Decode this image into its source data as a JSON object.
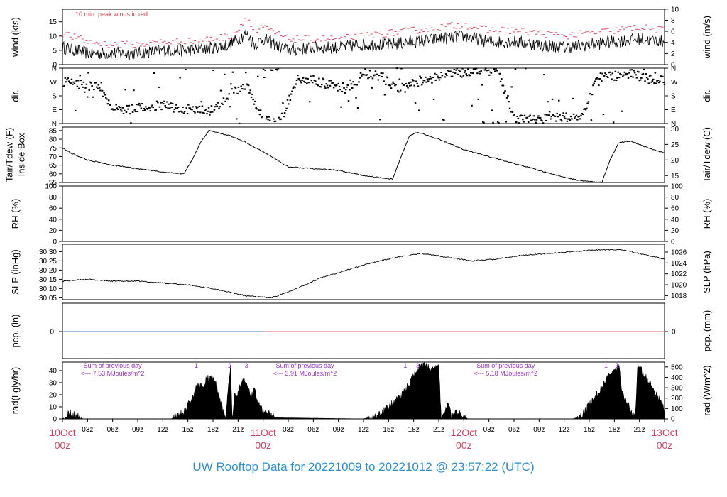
{
  "footer": {
    "title": "UW Rooftop Data for 20221009  to  20221012 @ 23:57:22  (UTC)"
  },
  "colors": {
    "ink": "#000000",
    "gust": "#e0445e",
    "date_label": "#d64060",
    "annotation": "#9932cc",
    "precip_blue": "#4a7fc0",
    "precip_red": "#e06a7a",
    "footer": "#2b8fd6"
  },
  "chart_data": [
    {
      "id": "wind",
      "type": "line",
      "ylabel_left": "wind (kts)",
      "ylabel_right": "wind (m/s)",
      "left_ticks": [
        0,
        5,
        10,
        15
      ],
      "right_ticks": [
        0,
        2,
        4,
        6,
        8,
        10
      ],
      "ylim": [
        0,
        19.4
      ],
      "annotation": "10 min. peak winds in red",
      "x_hours": [
        0,
        3,
        6,
        9,
        12,
        15,
        18,
        20,
        21,
        22,
        23,
        24,
        27,
        30,
        33,
        36,
        39,
        42,
        45,
        48,
        51,
        54,
        57,
        60,
        63,
        66,
        69,
        72
      ],
      "series": [
        {
          "name": "10 min. peak winds in red",
          "values": [
            11,
            8,
            7,
            7,
            8,
            8,
            9,
            10,
            12,
            17,
            11,
            13,
            9,
            9,
            9,
            10,
            11,
            12,
            13,
            14,
            12,
            12,
            11,
            10,
            11,
            12,
            13,
            12
          ]
        },
        {
          "values": [
            6,
            4,
            4,
            4,
            5,
            5,
            6,
            7,
            9,
            11,
            7,
            9,
            5,
            6,
            6,
            7,
            7,
            8,
            9,
            10,
            8,
            8,
            7,
            6,
            7,
            8,
            9,
            8
          ]
        }
      ]
    },
    {
      "id": "direction",
      "type": "scatter",
      "ylabel_left": "dir.",
      "ylabel_right": "dir.",
      "left_ticks": [
        "N",
        "E",
        "S",
        "W",
        "N"
      ],
      "right_ticks": [
        "N",
        "E",
        "S",
        "W",
        "N"
      ],
      "x_hours": [
        0,
        2,
        4,
        6,
        8,
        10,
        12,
        14,
        16,
        18,
        20,
        22,
        24,
        26,
        28,
        30,
        32,
        34,
        36,
        38,
        40,
        42,
        44,
        46,
        48,
        50,
        52,
        54,
        56,
        58,
        60,
        62,
        64,
        66,
        68,
        70,
        72
      ],
      "values_deg": [
        270,
        255,
        240,
        100,
        90,
        110,
        120,
        95,
        90,
        85,
        200,
        240,
        10,
        20,
        300,
        280,
        250,
        220,
        330,
        300,
        230,
        260,
        290,
        320,
        335,
        340,
        345,
        20,
        30,
        30,
        40,
        50,
        300,
        310,
        320,
        290,
        280
      ]
    },
    {
      "id": "temperature",
      "type": "line",
      "ylabel_left": "Tair/Tdew (F)\nInside Box",
      "ylabel_right": "Tair/Tdew (C)",
      "left_ticks": [
        55,
        60,
        65,
        70,
        75,
        80,
        85
      ],
      "right_ticks": [
        15,
        20,
        25,
        30
      ],
      "ylim": [
        55,
        87
      ],
      "x_hours": [
        0,
        1,
        3,
        6,
        9,
        12,
        14.5,
        15.5,
        16.5,
        17.5,
        18.5,
        20,
        22,
        25,
        27,
        30,
        33,
        36,
        39.5,
        40.5,
        41.5,
        42.5,
        45,
        48,
        51,
        54,
        57,
        60,
        62,
        64.5,
        65.5,
        66.5,
        68,
        70,
        72
      ],
      "values": [
        75,
        72,
        68,
        65,
        63,
        61,
        60,
        68,
        78,
        85,
        84,
        82,
        78,
        70,
        64,
        63,
        62,
        59,
        57,
        70,
        82,
        84,
        80,
        74,
        70,
        66,
        62,
        58,
        56,
        55,
        68,
        78,
        79,
        75,
        72
      ]
    },
    {
      "id": "rh",
      "type": "line",
      "ylabel_left": "RH (%)",
      "ylabel_right": "RH (%)",
      "left_ticks": [
        0,
        20,
        40,
        60,
        80,
        100
      ],
      "right_ticks": [
        0,
        20,
        40,
        60,
        80,
        100
      ],
      "ylim": [
        0,
        100
      ],
      "values": []
    },
    {
      "id": "pressure",
      "type": "line",
      "ylabel_left": "SLP (inHg)",
      "ylabel_right": "SLP (hPa)",
      "left_ticks": [
        30.05,
        30.1,
        30.15,
        30.2,
        30.25,
        30.3
      ],
      "right_ticks": [
        1018,
        1020,
        1022,
        1024,
        1026
      ],
      "ylim": [
        30.04,
        30.34
      ],
      "x_hours": [
        0,
        3,
        6,
        9,
        12,
        15,
        18,
        20,
        22,
        25,
        28,
        31,
        34,
        37,
        40,
        43,
        46,
        49,
        52,
        55,
        58,
        61,
        64,
        67,
        70,
        72
      ],
      "values": [
        30.14,
        30.15,
        30.14,
        30.14,
        30.13,
        30.12,
        30.1,
        30.08,
        30.06,
        30.05,
        30.1,
        30.16,
        30.2,
        30.24,
        30.27,
        30.29,
        30.27,
        30.25,
        30.26,
        30.28,
        30.29,
        30.3,
        30.31,
        30.31,
        30.28,
        30.26
      ]
    },
    {
      "id": "precip",
      "type": "line",
      "ylabel_left": "pcp. (in)",
      "ylabel_right": "pcp. (mm)",
      "left_ticks": [
        0
      ],
      "right_ticks": [
        0
      ],
      "ylim": [
        -1,
        1
      ],
      "x_hours": [
        0,
        72
      ],
      "values": [
        0,
        0
      ]
    },
    {
      "id": "radiation",
      "type": "area",
      "ylabel_left": "rad(Lgly/hr)",
      "ylabel_right": "rad (W/m^2)",
      "left_ticks": [
        0,
        10,
        20,
        30,
        40
      ],
      "right_ticks": [
        0,
        100,
        200,
        300,
        400,
        500
      ],
      "ylim": [
        0,
        47
      ],
      "annotations": [
        {
          "text": "Sum of previous day",
          "x_hour": 6
        },
        {
          "text": "<--- 7.53 MJoules/m^2",
          "x_hour": 6
        },
        {
          "text": "Sum of previous day",
          "x_hour": 29
        },
        {
          "text": "<--- 3.91 MJoules/m^2",
          "x_hour": 29
        },
        {
          "text": "Sum of previous day",
          "x_hour": 53
        },
        {
          "text": "<--- 5.18 MJoules/m^2",
          "x_hour": 53
        }
      ],
      "markers": [
        {
          "text": "1",
          "x_hour": 16
        },
        {
          "text": "2",
          "x_hour": 20
        },
        {
          "text": "3",
          "x_hour": 22
        },
        {
          "text": "1",
          "x_hour": 41
        },
        {
          "text": "3",
          "x_hour": 42.5
        },
        {
          "text": "1",
          "x_hour": 65
        },
        {
          "text": "3",
          "x_hour": 66.3
        }
      ],
      "x_hours": [
        0,
        0.8,
        1.2,
        2.5,
        12,
        13,
        14.5,
        15.5,
        16.2,
        16.8,
        17.2,
        17.8,
        18.2,
        19.5,
        20.1,
        20.3,
        20.6,
        20.9,
        21.2,
        21.6,
        22,
        22.5,
        23,
        23.4,
        23.8,
        24.4,
        25.5,
        36,
        38,
        40.5,
        41.5,
        42,
        42.4,
        42.8,
        43.5,
        44,
        44.5,
        45,
        45.3,
        46.2,
        46.5,
        47,
        47.5,
        48.5,
        61,
        62,
        63,
        64.5,
        65.3,
        66,
        66.5,
        67,
        68.5,
        68.8,
        71.8,
        72
      ],
      "values": [
        0,
        5,
        4,
        0,
        0,
        0,
        6,
        17,
        30,
        25,
        34,
        33,
        32,
        0,
        45,
        0,
        22,
        18,
        26,
        33,
        30,
        18,
        25,
        12,
        8,
        5,
        1,
        0,
        4,
        20,
        30,
        36,
        40,
        44,
        44,
        42,
        42,
        43,
        0,
        14,
        0,
        6,
        4,
        0,
        0,
        2,
        12,
        26,
        35,
        38,
        44,
        20,
        0,
        45,
        12,
        0
      ]
    }
  ],
  "x_axis": {
    "hour_ticks": [
      "03z",
      "06z",
      "09z",
      "12z",
      "15z",
      "18z",
      "21z"
    ],
    "dates": [
      {
        "day": "10Oct",
        "hour": "00z"
      },
      {
        "day": "11Oct",
        "hour": "00z"
      },
      {
        "day": "12Oct",
        "hour": "00z"
      },
      {
        "day": "13Oct",
        "hour": "00z"
      }
    ]
  }
}
